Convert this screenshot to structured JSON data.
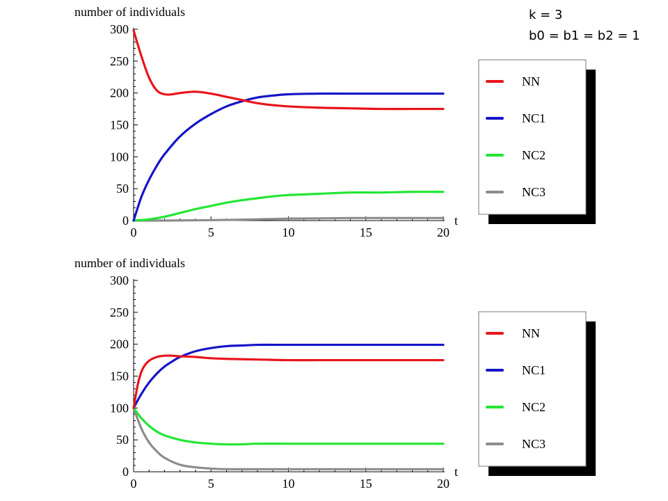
{
  "annotation": {
    "line1": "k = 3",
    "line2": "b0 = b1 = b2 = 1"
  },
  "colors": {
    "NN": "#e8141b",
    "NC1": "#1414c8",
    "NC2": "#22e632",
    "NC3": "#8c8c8c"
  },
  "chart_data": [
    {
      "type": "line",
      "ylabel": "number of individuals",
      "xlabel": "t",
      "xlim": [
        0,
        20
      ],
      "ylim": [
        0,
        300
      ],
      "xticks": [
        0,
        5,
        10,
        15,
        20
      ],
      "yticks": [
        0,
        50,
        100,
        150,
        200,
        250,
        300
      ],
      "legend": {
        "placement": "right",
        "entries": [
          "NN",
          "NC1",
          "NC2",
          "NC3"
        ]
      },
      "series": [
        {
          "name": "NN",
          "color": "#e8141b",
          "x": [
            0,
            0.5,
            1,
            1.5,
            2,
            2.5,
            3,
            4,
            5,
            6,
            7,
            8,
            9,
            10,
            12,
            14,
            16,
            18,
            20
          ],
          "values": [
            298,
            258,
            224,
            204,
            198,
            198,
            200,
            202,
            199,
            194,
            189,
            184,
            181,
            179,
            177,
            176,
            175,
            175,
            175
          ]
        },
        {
          "name": "NC1",
          "color": "#1414c8",
          "x": [
            0,
            0.5,
            1,
            1.5,
            2,
            3,
            4,
            5,
            6,
            7,
            8,
            9,
            10,
            12,
            14,
            16,
            18,
            20
          ],
          "values": [
            0,
            37,
            64,
            86,
            104,
            132,
            152,
            167,
            179,
            187,
            193,
            196,
            198,
            199,
            199,
            199,
            199,
            199
          ]
        },
        {
          "name": "NC2",
          "color": "#22e632",
          "x": [
            0,
            1,
            2,
            3,
            4,
            5,
            6,
            7,
            8,
            9,
            10,
            12,
            14,
            16,
            18,
            20
          ],
          "values": [
            0,
            2,
            6,
            12,
            18,
            23,
            28,
            32,
            35,
            38,
            40,
            42,
            44,
            44,
            45,
            45
          ]
        },
        {
          "name": "NC3",
          "color": "#8c8c8c",
          "x": [
            0,
            2,
            4,
            6,
            8,
            10,
            12,
            14,
            16,
            18,
            20
          ],
          "values": [
            0,
            0,
            0.5,
            1,
            2,
            3,
            3.5,
            4,
            4,
            4,
            4
          ]
        }
      ]
    },
    {
      "type": "line",
      "ylabel": "number of individuals",
      "xlabel": "t",
      "xlim": [
        0,
        20
      ],
      "ylim": [
        0,
        300
      ],
      "xticks": [
        0,
        5,
        10,
        15,
        20
      ],
      "yticks": [
        0,
        50,
        100,
        150,
        200,
        250,
        300
      ],
      "legend": {
        "placement": "right",
        "entries": [
          "NN",
          "NC1",
          "NC2",
          "NC3"
        ]
      },
      "series": [
        {
          "name": "NN",
          "color": "#e8141b",
          "x": [
            0,
            0.3,
            0.6,
            1,
            1.5,
            2,
            2.5,
            3,
            4,
            5,
            6,
            8,
            10,
            12,
            14,
            16,
            18,
            20
          ],
          "values": [
            100,
            140,
            162,
            174,
            180,
            182,
            182,
            181,
            180,
            178,
            177,
            176,
            175,
            175,
            175,
            175,
            175,
            175
          ]
        },
        {
          "name": "NC1",
          "color": "#1414c8",
          "x": [
            0,
            0.5,
            1,
            1.5,
            2,
            2.5,
            3,
            4,
            5,
            6,
            7,
            8,
            10,
            12,
            14,
            16,
            18,
            20
          ],
          "values": [
            100,
            122,
            140,
            154,
            165,
            173,
            180,
            189,
            194,
            197,
            198,
            199,
            199,
            199,
            199,
            199,
            199,
            199
          ]
        },
        {
          "name": "NC2",
          "color": "#22e632",
          "x": [
            0,
            0.5,
            1,
            1.5,
            2,
            3,
            4,
            5,
            6,
            7,
            8,
            10,
            12,
            14,
            16,
            18,
            20
          ],
          "values": [
            100,
            84,
            72,
            63,
            57,
            50,
            46,
            44,
            43,
            43,
            44,
            44,
            44,
            44,
            44,
            44,
            44
          ]
        },
        {
          "name": "NC3",
          "color": "#8c8c8c",
          "x": [
            0,
            0.5,
            1,
            1.5,
            2,
            3,
            4,
            5,
            6,
            8,
            10,
            12,
            14,
            16,
            18,
            20
          ],
          "values": [
            100,
            68,
            46,
            32,
            22,
            11,
            7,
            5,
            4,
            4,
            4,
            4,
            4,
            4,
            4,
            4
          ]
        }
      ]
    }
  ]
}
